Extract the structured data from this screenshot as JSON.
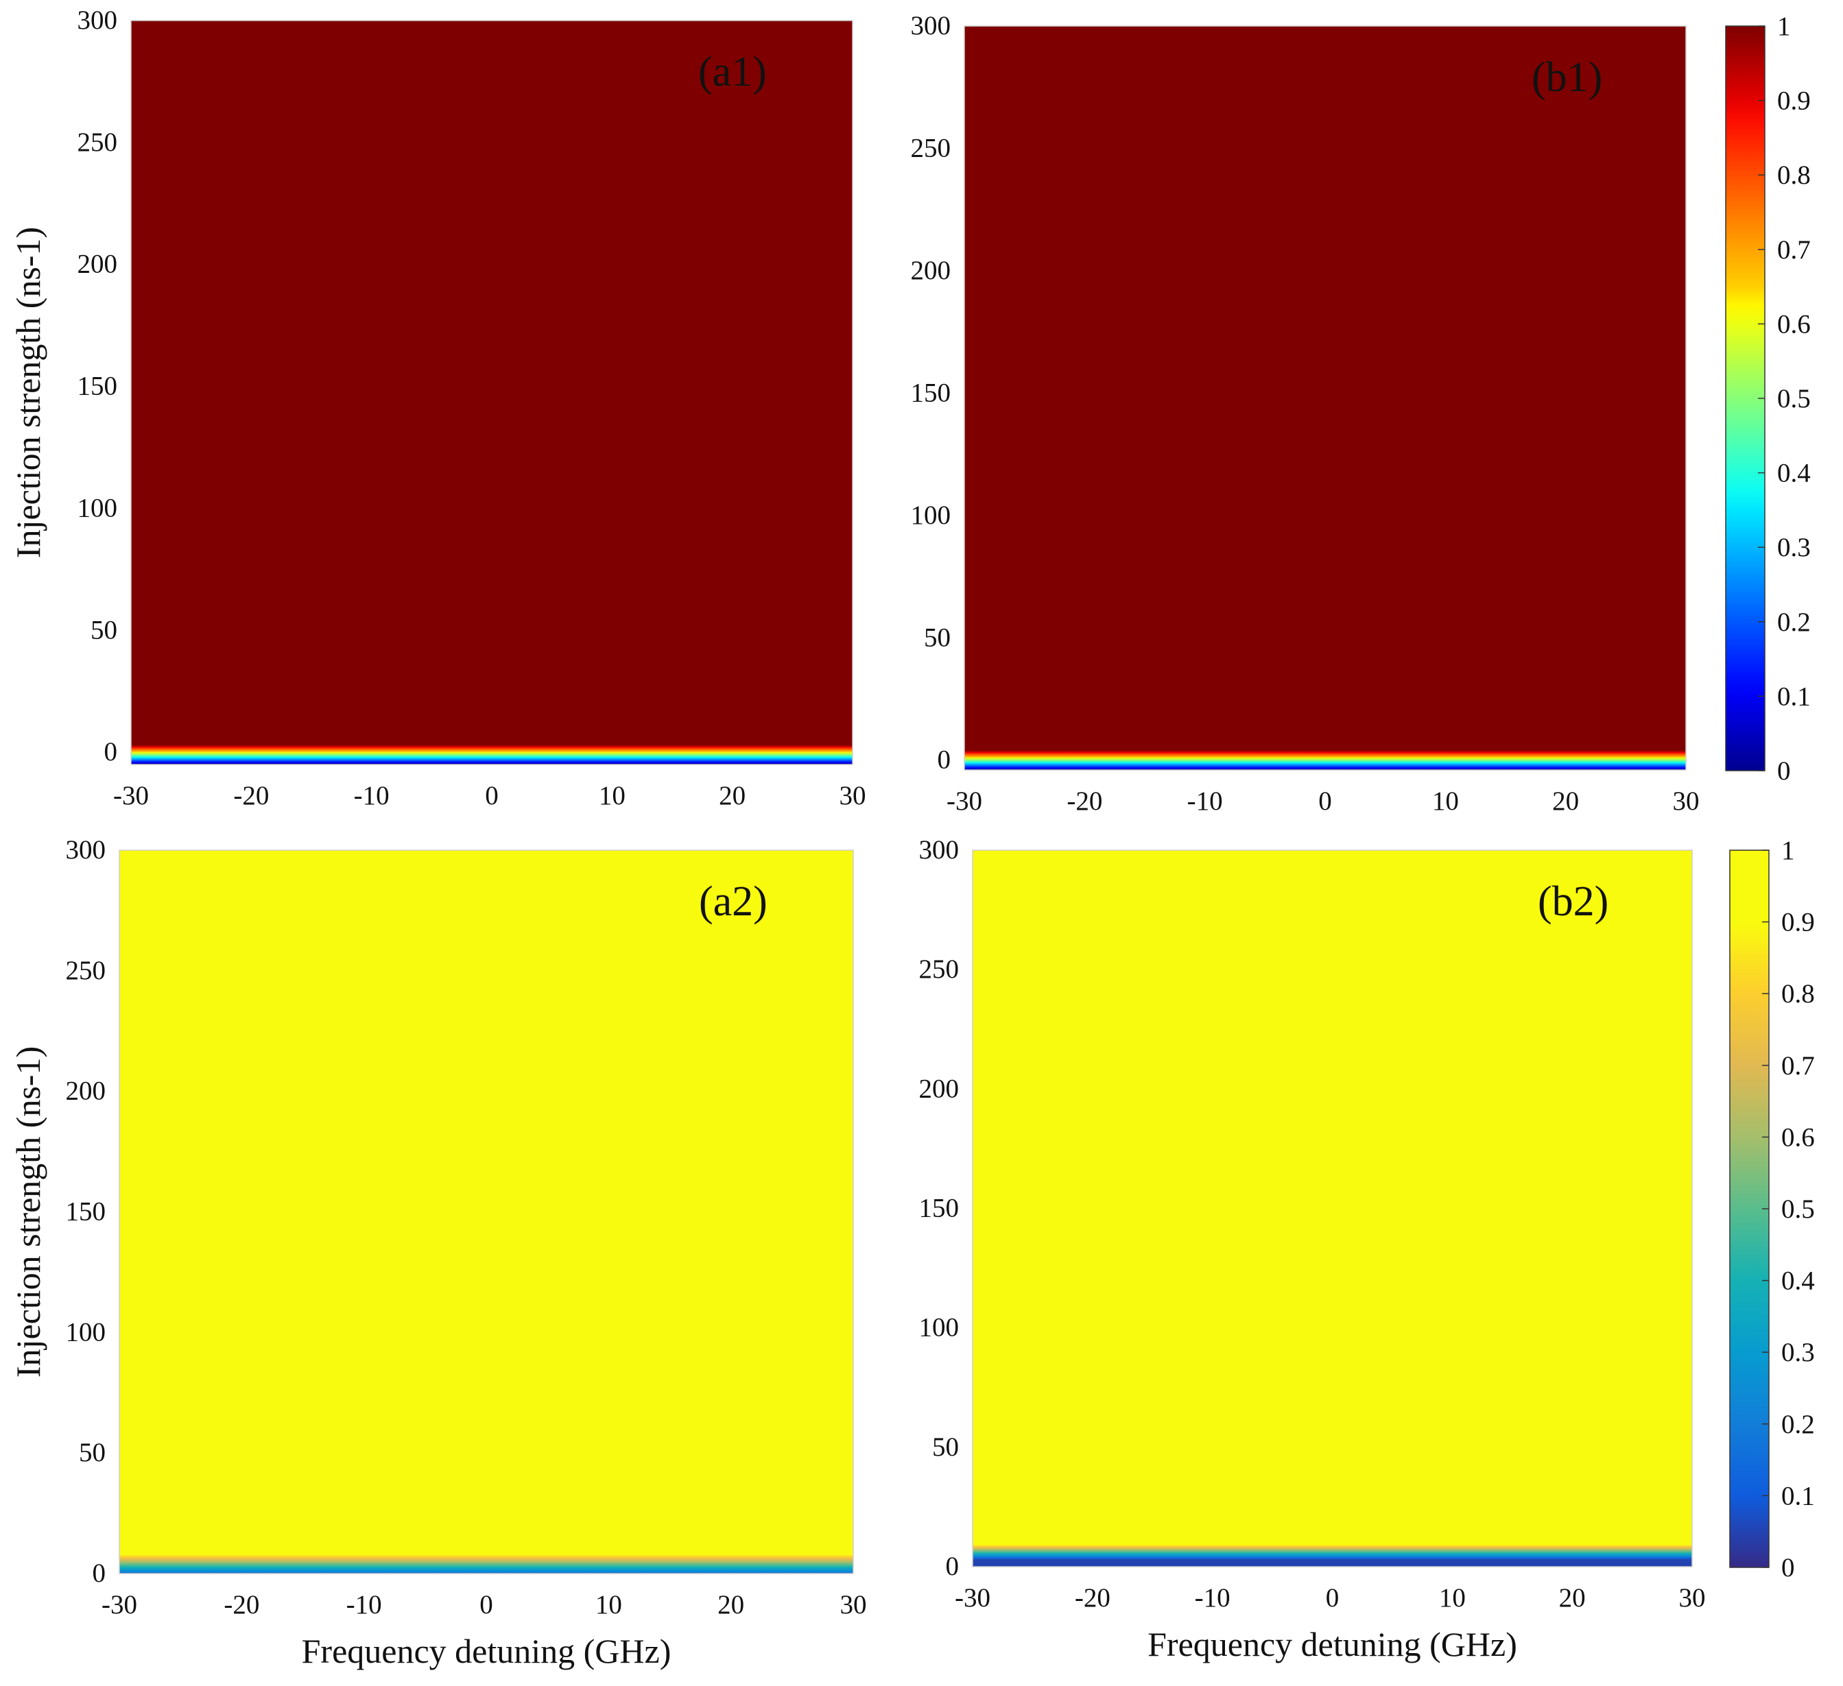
{
  "chart_data": [
    {
      "id": "a1",
      "type": "heatmap",
      "panel_label": "(a1)",
      "colormap": "jet",
      "x_ticks": [
        "-30",
        "-20",
        "-10",
        "0",
        "10",
        "20",
        "30"
      ],
      "y_ticks": [
        "300",
        "250",
        "200",
        "150",
        "100",
        "50",
        "0"
      ],
      "xlim": [
        -30,
        30
      ],
      "ylim": [
        -5,
        300
      ],
      "ylabel": "Injection strength (ns-1)",
      "xlabel": "",
      "transition": {
        "y_low": -5,
        "value_low": 0.0,
        "y_high": 3,
        "value_high": 1.0
      },
      "dominant_value": 1.0
    },
    {
      "id": "b1",
      "type": "heatmap",
      "panel_label": "(b1)",
      "colormap": "jet",
      "x_ticks": [
        "-30",
        "-20",
        "-10",
        "0",
        "10",
        "20",
        "30"
      ],
      "y_ticks": [
        "300",
        "250",
        "200",
        "150",
        "100",
        "50",
        "0"
      ],
      "xlim": [
        -30,
        30
      ],
      "ylim": [
        -4,
        300
      ],
      "ylabel": "",
      "xlabel": "",
      "transition": {
        "y_low": -4,
        "value_low": 0.0,
        "y_high": 4,
        "value_high": 1.0
      },
      "dominant_value": 1.0
    },
    {
      "id": "a2",
      "type": "heatmap",
      "panel_label": "(a2)",
      "colormap": "parula",
      "x_ticks": [
        "-30",
        "-20",
        "-10",
        "0",
        "10",
        "20",
        "30"
      ],
      "y_ticks": [
        "300",
        "250",
        "200",
        "150",
        "100",
        "50",
        "0"
      ],
      "xlim": [
        -30,
        30
      ],
      "ylim": [
        0,
        300
      ],
      "ylabel": "Injection strength (ns-1)",
      "xlabel": "Frequency detuning (GHz)",
      "transition": {
        "y_low": 0,
        "value_low": 0.15,
        "y_high": 9,
        "value_high": 1.0
      },
      "dominant_value": 1.0
    },
    {
      "id": "b2",
      "type": "heatmap",
      "panel_label": "(b2)",
      "colormap": "parula",
      "x_ticks": [
        "-30",
        "-20",
        "-10",
        "0",
        "10",
        "20",
        "30"
      ],
      "y_ticks": [
        "300",
        "250",
        "200",
        "150",
        "100",
        "50",
        "0"
      ],
      "xlim": [
        -30,
        30
      ],
      "ylim": [
        0,
        300
      ],
      "ylabel": "",
      "xlabel": "Frequency detuning (GHz)",
      "transition": {
        "y_low": 3,
        "value_low": 0.05,
        "y_high": 10,
        "value_high": 1.0
      },
      "dominant_value": 1.0
    }
  ],
  "colorbars": [
    {
      "id": "cb-top",
      "colormap": "jet",
      "range": [
        0,
        1
      ],
      "ticks": [
        "1",
        "0.9",
        "0.8",
        "0.7",
        "0.6",
        "0.5",
        "0.4",
        "0.3",
        "0.2",
        "0.1",
        "0"
      ]
    },
    {
      "id": "cb-bottom",
      "colormap": "parula",
      "range": [
        0,
        1
      ],
      "ticks": [
        "1",
        "0.9",
        "0.8",
        "0.7",
        "0.6",
        "0.5",
        "0.4",
        "0.3",
        "0.2",
        "0.1",
        "0"
      ]
    }
  ],
  "colors": {
    "jet_dark_red": "#7f0000",
    "parula_yellow": "#f9fb0e"
  }
}
